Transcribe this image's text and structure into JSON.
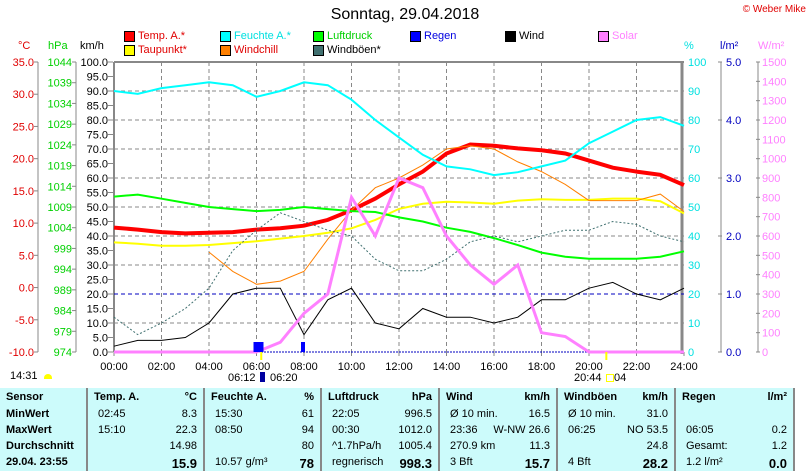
{
  "header": {
    "title": "Sonntag, 29.04.2018",
    "copyright": "© Weber Mike"
  },
  "units": {
    "temp": "°C",
    "pressure": "hPa",
    "wind": "km/h",
    "humidity": "%",
    "rain": "l/m²",
    "solar": "W/m²"
  },
  "legend": [
    {
      "label": "Temp. A.*",
      "color": "#ff0000",
      "text_color": "#e00000"
    },
    {
      "label": "Taupunkt*",
      "color": "#ffff00",
      "text_color": "#e00000"
    },
    {
      "label": "Feuchte A.*",
      "color": "#00ffff",
      "text_color": "#00e0e0"
    },
    {
      "label": "Windchill",
      "color": "#ff8000",
      "text_color": "#e00000"
    },
    {
      "label": "Luftdruck",
      "color": "#00ff00",
      "text_color": "#00d000"
    },
    {
      "label": "Windböen*",
      "color": "#407070",
      "text_color": "#000000"
    },
    {
      "label": "Regen",
      "color": "#0000ff",
      "text_color": "#0000e0"
    },
    {
      "label": "Wind",
      "color": "#000000",
      "text_color": "#000000"
    },
    {
      "label": "Solar",
      "color": "#ff80ff",
      "text_color": "#ff80ff"
    }
  ],
  "chart_data": {
    "type": "line",
    "title": "Sonntag, 29.04.2018",
    "xlabel": "Uhrzeit",
    "x_ticks": [
      "00:00",
      "02:00",
      "04:00",
      "06:00",
      "08:00",
      "10:00",
      "12:00",
      "14:00",
      "16:00",
      "18:00",
      "20:00",
      "22:00",
      "24:00"
    ],
    "axes": {
      "temp": {
        "label": "°C",
        "ticks": [
          "35.0",
          "30.0",
          "25.0",
          "20.0",
          "15.0",
          "10.0",
          "5.0",
          "0.0",
          "-5.0",
          "-10.0"
        ],
        "range": [
          -10,
          35
        ]
      },
      "pressure": {
        "label": "hPa",
        "ticks": [
          "1044",
          "1039",
          "1034",
          "1029",
          "1024",
          "1019",
          "1014",
          "1009",
          "1004",
          "999",
          "994",
          "989",
          "984",
          "979",
          "974"
        ],
        "range": [
          974,
          1044
        ]
      },
      "wind": {
        "label": "km/h",
        "ticks": [
          "100.0",
          "95.0",
          "90.0",
          "85.0",
          "80.0",
          "75.0",
          "70.0",
          "65.0",
          "60.0",
          "55.0",
          "50.0",
          "45.0",
          "40.0",
          "35.0",
          "30.0",
          "25.0",
          "20.0",
          "15.0",
          "10.0",
          "5.0",
          "0.0"
        ],
        "range": [
          0,
          100
        ]
      },
      "humidity": {
        "label": "%",
        "ticks": [
          "100",
          "90",
          "80",
          "70",
          "60",
          "50",
          "40",
          "30",
          "20",
          "10",
          "0"
        ],
        "range": [
          0,
          100
        ]
      },
      "rain": {
        "label": "l/m²",
        "ticks": [
          "5.0",
          "4.0",
          "3.0",
          "2.0",
          "1.0",
          "0.0"
        ],
        "range": [
          0,
          5
        ]
      },
      "solar": {
        "label": "W/m²",
        "ticks": [
          "1500",
          "1400",
          "1300",
          "1200",
          "1100",
          "1000",
          "900",
          "800",
          "700",
          "600",
          "500",
          "400",
          "300",
          "200",
          "100",
          "0"
        ],
        "range": [
          0,
          1500
        ]
      }
    },
    "x_hours": [
      0,
      1,
      2,
      3,
      4,
      5,
      6,
      7,
      8,
      9,
      10,
      11,
      12,
      13,
      14,
      15,
      16,
      17,
      18,
      19,
      20,
      21,
      22,
      23,
      24
    ],
    "series": [
      {
        "name": "Temp. A.",
        "axis": "temp",
        "color": "#ff0000",
        "values": [
          9.3,
          9.0,
          8.6,
          8.4,
          8.5,
          8.6,
          9.0,
          9.2,
          9.6,
          10.5,
          12.0,
          13.8,
          16.0,
          18.0,
          20.8,
          22.2,
          22.0,
          21.6,
          21.3,
          20.8,
          19.7,
          18.6,
          18.0,
          17.5,
          15.9
        ]
      },
      {
        "name": "Taupunkt",
        "axis": "temp",
        "color": "#ffff00",
        "values": [
          7.0,
          6.8,
          6.5,
          6.5,
          6.6,
          6.9,
          7.2,
          7.6,
          8.0,
          8.5,
          9.2,
          10.5,
          12.2,
          13.0,
          13.3,
          13.2,
          13.0,
          13.5,
          13.7,
          13.6,
          13.6,
          13.8,
          13.8,
          13.4,
          11.5
        ]
      },
      {
        "name": "Windchill",
        "axis": "temp",
        "color": "#ff8000",
        "values": [
          null,
          null,
          null,
          null,
          5.5,
          2.5,
          0.5,
          1.0,
          2.5,
          7.5,
          12.0,
          15.5,
          17.0,
          19.0,
          21.5,
          22.0,
          21.5,
          19.5,
          18.0,
          16.0,
          13.5,
          13.5,
          13.5,
          14.5,
          11.8
        ]
      },
      {
        "name": "Feuchte A.",
        "axis": "humidity",
        "color": "#00ffff",
        "values": [
          90,
          89,
          91,
          92,
          93,
          92,
          88,
          90,
          93,
          92,
          87,
          80,
          74,
          68,
          64,
          63,
          61,
          62,
          64,
          66,
          72,
          76,
          80,
          81,
          78
        ]
      },
      {
        "name": "Luftdruck",
        "axis": "pressure",
        "color": "#00ff00",
        "values": [
          1011.5,
          1012.0,
          1011.0,
          1010.0,
          1009.0,
          1008.5,
          1008.0,
          1008.3,
          1009.0,
          1008.5,
          1008.0,
          1007.8,
          1006.5,
          1005.5,
          1004.0,
          1003.0,
          1001.5,
          999.8,
          998.0,
          997.0,
          996.5,
          996.5,
          996.5,
          997.0,
          998.3
        ]
      },
      {
        "name": "Windböen",
        "axis": "wind",
        "color": "#407070",
        "values": [
          12,
          6,
          10,
          15,
          22,
          35,
          42,
          48,
          45,
          42,
          40,
          32,
          28,
          28,
          32,
          38,
          40,
          38,
          40,
          42,
          42,
          45,
          44,
          40,
          38
        ]
      },
      {
        "name": "Wind",
        "axis": "wind",
        "color": "#000000",
        "values": [
          2,
          4,
          4,
          5,
          10,
          20,
          22,
          22,
          6,
          18,
          22,
          10,
          8,
          15,
          12,
          12,
          10,
          12,
          18,
          18,
          22,
          24,
          20,
          18,
          22
        ]
      },
      {
        "name": "Solar",
        "axis": "solar",
        "color": "#ff80ff",
        "values": [
          0,
          0,
          0,
          0,
          0,
          0,
          0,
          50,
          200,
          300,
          800,
          600,
          900,
          850,
          600,
          450,
          350,
          450,
          100,
          80,
          0,
          0,
          0,
          0,
          0
        ]
      },
      {
        "name": "Regen",
        "axis": "rain",
        "color": "#0000ff",
        "type": "bar",
        "values": [
          0,
          0,
          0,
          0,
          0,
          0,
          0.2,
          0,
          0.2,
          0,
          0,
          0,
          0,
          0,
          0,
          0,
          0,
          0,
          0,
          0,
          0,
          0,
          0,
          0,
          0
        ]
      }
    ],
    "reference_line": {
      "axis": "rain",
      "value": 1.0,
      "color": "#0000c0"
    }
  },
  "sun": {
    "current_time": "14:31",
    "sunrise": "06:12",
    "moonset": "06:20",
    "sunset": "20:44",
    "moonrise": "04"
  },
  "table": {
    "columns": [
      {
        "header": "Sensor",
        "unit": "",
        "rows": [
          [
            "MinWert",
            ""
          ],
          [
            "MaxWert",
            ""
          ],
          [
            "Durchschnitt",
            ""
          ],
          [
            "29.04. 23:55",
            ""
          ]
        ],
        "bold_labels": true
      },
      {
        "header": "Temp. A.",
        "unit": "°C",
        "rows": [
          [
            "02:45",
            "8.3"
          ],
          [
            "15:10",
            "22.3"
          ],
          [
            "",
            "14.98"
          ],
          [
            "",
            "15.9"
          ]
        ]
      },
      {
        "header": "Feuchte A.",
        "unit": "%",
        "rows": [
          [
            "15:30",
            "61"
          ],
          [
            "08:50",
            "94"
          ],
          [
            "",
            "80"
          ],
          [
            "10.57 g/m³",
            "78"
          ]
        ]
      },
      {
        "header": "Luftdruck",
        "unit": "hPa",
        "rows": [
          [
            "22:05",
            "996.5"
          ],
          [
            "00:30",
            "1012.0"
          ],
          [
            "^1.7hPa/h",
            "1005.4"
          ],
          [
            "regnerisch",
            "998.3"
          ]
        ]
      },
      {
        "header": "Wind",
        "unit": "km/h",
        "rows": [
          [
            "Ø 10 min.",
            "16.5"
          ],
          [
            "23:36",
            "W-NW 26.6"
          ],
          [
            "270.9 km",
            "11.3"
          ],
          [
            "3 Bft",
            "15.7"
          ]
        ]
      },
      {
        "header": "Windböen",
        "unit": "km/h",
        "rows": [
          [
            "Ø 10 min.",
            "31.0"
          ],
          [
            "06:25",
            "NO 53.5"
          ],
          [
            "",
            "24.8"
          ],
          [
            "4 Bft",
            "28.2"
          ]
        ]
      },
      {
        "header": "Regen",
        "unit": "l/m²",
        "rows": [
          [
            "",
            ""
          ],
          [
            "06:05",
            "0.2"
          ],
          [
            "Gesamt:",
            "1.2"
          ],
          [
            "1.2 l/m²",
            "0.0"
          ]
        ]
      }
    ]
  }
}
